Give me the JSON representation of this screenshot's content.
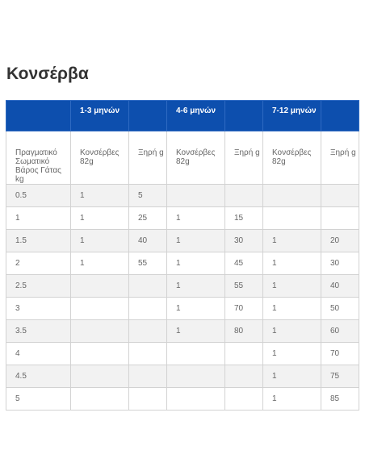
{
  "title": "Κονσέρβα",
  "table": {
    "age_groups": [
      "",
      "1-3 μηνών",
      "",
      "4-6 μηνών",
      "",
      "7-12 μηνών",
      ""
    ],
    "column_labels": [
      "Πραγματικό Σωματικό Βάρος Γάτας kg",
      "Κονσέρβες 82g",
      "Ξηρή g",
      "Κονσέρβες 82g",
      "Ξηρή g",
      "Κονσέρβες 82g",
      "Ξηρή g"
    ],
    "rows": [
      [
        "0.5",
        "1",
        "5",
        "",
        "",
        "",
        ""
      ],
      [
        "1",
        "1",
        "25",
        "1",
        "15",
        "",
        ""
      ],
      [
        "1.5",
        "1",
        "40",
        "1",
        "30",
        "1",
        "20"
      ],
      [
        "2",
        "1",
        "55",
        "1",
        "45",
        "1",
        "30"
      ],
      [
        "2.5",
        "",
        "",
        "1",
        "55",
        "1",
        "40"
      ],
      [
        "3",
        "",
        "",
        "1",
        "70",
        "1",
        "50"
      ],
      [
        "3.5",
        "",
        "",
        "1",
        "80",
        "1",
        "60"
      ],
      [
        "4",
        "",
        "",
        "",
        "",
        "1",
        "70"
      ],
      [
        "4.5",
        "",
        "",
        "",
        "",
        "1",
        "75"
      ],
      [
        "5",
        "",
        "",
        "",
        "",
        "1",
        "85"
      ]
    ]
  }
}
